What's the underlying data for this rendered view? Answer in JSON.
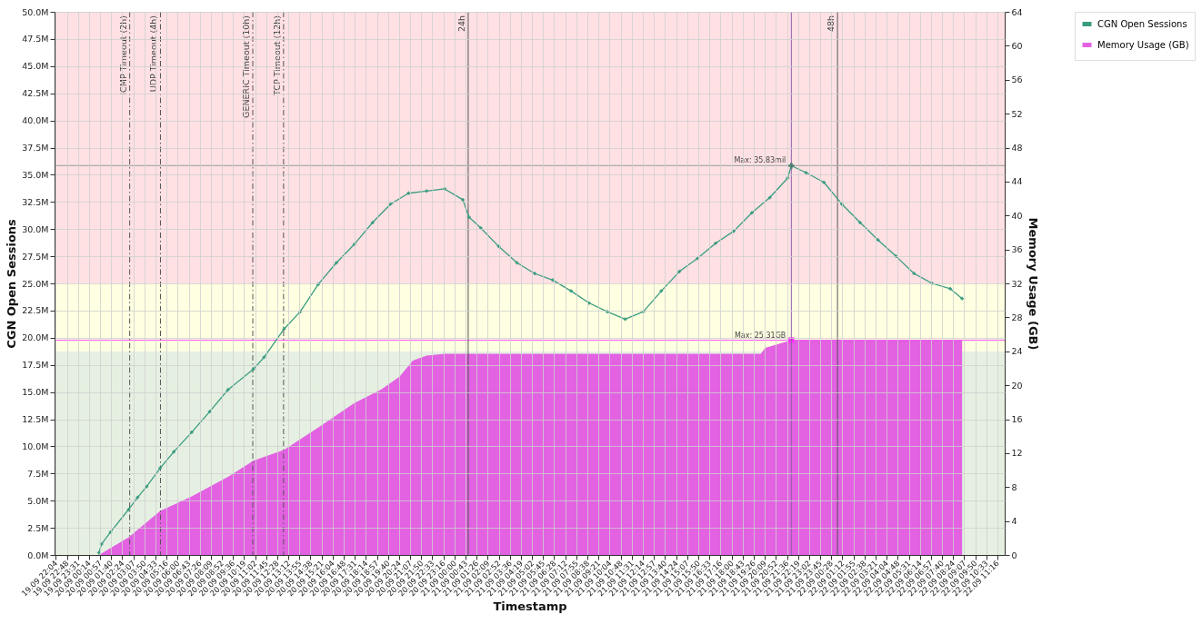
{
  "chart_data": {
    "type": "line",
    "xlabel": "Timestamp",
    "ylabel": "CGN Open Sessions",
    "y2label": "Memory Usage (GB)",
    "xlim": [
      "--09-19T22:00",
      "--09-22T11:45"
    ],
    "xticks": [
      {
        "value": "--09-19T22:04",
        "label": "19.09 22:04"
      },
      {
        "value": "--09-19T22:48",
        "label": "19.09 22:48"
      },
      {
        "value": "--09-19T23:31",
        "label": "19.09 23:31"
      },
      {
        "value": "--09-20T00:14",
        "label": "20.09 00:14"
      },
      {
        "value": "--09-20T00:57",
        "label": "20.09 00:57"
      },
      {
        "value": "--09-20T01:40",
        "label": "20.09 01:40"
      },
      {
        "value": "--09-20T02:24",
        "label": "20.09 02:24"
      },
      {
        "value": "--09-20T03:07",
        "label": "20.09 03:07"
      },
      {
        "value": "--09-20T03:50",
        "label": "20.09 03:50"
      },
      {
        "value": "--09-20T04:33",
        "label": "20.09 04:33"
      },
      {
        "value": "--09-20T05:16",
        "label": "20.09 05:16"
      },
      {
        "value": "--09-20T06:00",
        "label": "20.09 06:00"
      },
      {
        "value": "--09-20T06:43",
        "label": "20.09 06:43"
      },
      {
        "value": "--09-20T07:26",
        "label": "20.09 07:26"
      },
      {
        "value": "--09-20T08:09",
        "label": "20.09 08:09"
      },
      {
        "value": "--09-20T08:52",
        "label": "20.09 08:52"
      },
      {
        "value": "--09-20T09:36",
        "label": "20.09 09:36"
      },
      {
        "value": "--09-20T10:19",
        "label": "20.09 10:19"
      },
      {
        "value": "--09-20T11:02",
        "label": "20.09 11:02"
      },
      {
        "value": "--09-20T11:45",
        "label": "20.09 11:45"
      },
      {
        "value": "--09-20T12:28",
        "label": "20.09 12:28"
      },
      {
        "value": "--09-20T13:12",
        "label": "20.09 13:12"
      },
      {
        "value": "--09-20T13:55",
        "label": "20.09 13:55"
      },
      {
        "value": "--09-20T14:38",
        "label": "20.09 14:38"
      },
      {
        "value": "--09-20T15:21",
        "label": "20.09 15:21"
      },
      {
        "value": "--09-20T16:04",
        "label": "20.09 16:04"
      },
      {
        "value": "--09-20T16:48",
        "label": "20.09 16:48"
      },
      {
        "value": "--09-20T17:31",
        "label": "20.09 17:31"
      },
      {
        "value": "--09-20T18:14",
        "label": "20.09 18:14"
      },
      {
        "value": "--09-20T18:57",
        "label": "20.09 18:57"
      },
      {
        "value": "--09-20T19:40",
        "label": "20.09 19:40"
      },
      {
        "value": "--09-20T20:24",
        "label": "20.09 20:24"
      },
      {
        "value": "--09-20T21:07",
        "label": "20.09 21:07"
      },
      {
        "value": "--09-20T21:50",
        "label": "20.09 21:50"
      },
      {
        "value": "--09-20T22:33",
        "label": "20.09 22:33"
      },
      {
        "value": "--09-20T23:16",
        "label": "20.09 23:16"
      },
      {
        "value": "--09-21T00:00",
        "label": "21.09 00:00"
      },
      {
        "value": "--09-21T00:43",
        "label": "21.09 00:43"
      },
      {
        "value": "--09-21T01:26",
        "label": "21.09 01:26"
      },
      {
        "value": "--09-21T02:09",
        "label": "21.09 02:09"
      },
      {
        "value": "--09-21T02:52",
        "label": "21.09 02:52"
      },
      {
        "value": "--09-21T03:36",
        "label": "21.09 03:36"
      },
      {
        "value": "--09-21T04:19",
        "label": "21.09 04:19"
      },
      {
        "value": "--09-21T05:02",
        "label": "21.09 05:02"
      },
      {
        "value": "--09-21T05:45",
        "label": "21.09 05:45"
      },
      {
        "value": "--09-21T06:28",
        "label": "21.09 06:28"
      },
      {
        "value": "--09-21T07:12",
        "label": "21.09 07:12"
      },
      {
        "value": "--09-21T07:55",
        "label": "21.09 07:55"
      },
      {
        "value": "--09-21T08:38",
        "label": "21.09 08:38"
      },
      {
        "value": "--09-21T09:21",
        "label": "21.09 09:21"
      },
      {
        "value": "--09-21T10:04",
        "label": "21.09 10:04"
      },
      {
        "value": "--09-21T10:48",
        "label": "21.09 10:48"
      },
      {
        "value": "--09-21T11:31",
        "label": "21.09 11:31"
      },
      {
        "value": "--09-21T12:14",
        "label": "21.09 12:14"
      },
      {
        "value": "--09-21T12:57",
        "label": "21.09 12:57"
      },
      {
        "value": "--09-21T13:40",
        "label": "21.09 13:40"
      },
      {
        "value": "--09-21T14:24",
        "label": "21.09 14:24"
      },
      {
        "value": "--09-21T15:07",
        "label": "21.09 15:07"
      },
      {
        "value": "--09-21T15:50",
        "label": "21.09 15:50"
      },
      {
        "value": "--09-21T16:33",
        "label": "21.09 16:33"
      },
      {
        "value": "--09-21T17:16",
        "label": "21.09 17:16"
      },
      {
        "value": "--09-21T18:00",
        "label": "21.09 18:00"
      },
      {
        "value": "--09-21T18:43",
        "label": "21.09 18:43"
      },
      {
        "value": "--09-21T19:26",
        "label": "21.09 19:26"
      },
      {
        "value": "--09-21T20:09",
        "label": "21.09 20:09"
      },
      {
        "value": "--09-21T20:52",
        "label": "21.09 20:52"
      },
      {
        "value": "--09-21T21:36",
        "label": "21.09 21:36"
      },
      {
        "value": "--09-21T22:19",
        "label": "21.09 22:19"
      },
      {
        "value": "--09-21T23:02",
        "label": "21.09 23:02"
      },
      {
        "value": "--09-21T23:45",
        "label": "21.09 23:45"
      },
      {
        "value": "--09-22T00:28",
        "label": "22.09 00:28"
      },
      {
        "value": "--09-22T01:12",
        "label": "22.09 01:12"
      },
      {
        "value": "--09-22T01:55",
        "label": "22.09 01:55"
      },
      {
        "value": "--09-22T02:38",
        "label": "22.09 02:38"
      },
      {
        "value": "--09-22T03:21",
        "label": "22.09 03:21"
      },
      {
        "value": "--09-22T04:04",
        "label": "22.09 04:04"
      },
      {
        "value": "--09-22T04:48",
        "label": "22.09 04:48"
      },
      {
        "value": "--09-22T05:31",
        "label": "22.09 05:31"
      },
      {
        "value": "--09-22T06:14",
        "label": "22.09 06:14"
      },
      {
        "value": "--09-22T06:57",
        "label": "22.09 06:57"
      },
      {
        "value": "--09-22T07:40",
        "label": "22.09 07:40"
      },
      {
        "value": "--09-22T08:24",
        "label": "22.09 08:24"
      },
      {
        "value": "--09-22T09:07",
        "label": "22.09 09:07"
      },
      {
        "value": "--09-22T09:50",
        "label": "22.09 09:50"
      },
      {
        "value": "--09-22T10:33",
        "label": "22.09 10:33"
      },
      {
        "value": "--09-22T11:16",
        "label": "22.09 11:16"
      }
    ],
    "ylim": [
      0,
      50
    ],
    "yticks": [
      {
        "value": 0,
        "label": "0.0M"
      },
      {
        "value": 2.5,
        "label": "2.5M"
      },
      {
        "value": 5,
        "label": "5.0M"
      },
      {
        "value": 7.5,
        "label": "7.5M"
      },
      {
        "value": 10,
        "label": "10.0M"
      },
      {
        "value": 12.5,
        "label": "12.5M"
      },
      {
        "value": 15,
        "label": "15.0M"
      },
      {
        "value": 17.5,
        "label": "17.5M"
      },
      {
        "value": 20,
        "label": "20.0M"
      },
      {
        "value": 22.5,
        "label": "22.5M"
      },
      {
        "value": 25,
        "label": "25.0M"
      },
      {
        "value": 27.5,
        "label": "27.5M"
      },
      {
        "value": 30,
        "label": "30.0M"
      },
      {
        "value": 32.5,
        "label": "32.5M"
      },
      {
        "value": 35,
        "label": "35.0M"
      },
      {
        "value": 37.5,
        "label": "37.5M"
      },
      {
        "value": 40,
        "label": "40.0M"
      },
      {
        "value": 42.5,
        "label": "42.5M"
      },
      {
        "value": 45,
        "label": "45.0M"
      },
      {
        "value": 47.5,
        "label": "47.5M"
      },
      {
        "value": 50,
        "label": "50.0M"
      }
    ],
    "y2lim": [
      0,
      64
    ],
    "y2ticks": [
      0,
      4,
      8,
      12,
      16,
      20,
      24,
      28,
      32,
      36,
      40,
      44,
      48,
      52,
      56,
      60,
      64
    ],
    "grid": true,
    "legend": "top right",
    "marker": "cross",
    "line_style": "solid",
    "series": [
      {
        "name": "CGN Open Sessions",
        "color": "#3a9c80",
        "x": [
          "--09-20T00:53",
          "--09-20T01:03",
          "--09-20T01:38",
          "--09-20T02:49",
          "--09-20T03:24",
          "--09-20T03:59",
          "--09-20T04:52",
          "--09-20T05:45",
          "--09-20T06:55",
          "--09-20T08:05",
          "--09-20T09:16",
          "--09-20T10:55",
          "--09-20T11:37",
          "--09-20T12:55",
          "--09-20T13:58",
          "--09-20T15:08",
          "--09-20T16:19",
          "--09-20T17:29",
          "--09-20T18:40",
          "--09-20T19:50",
          "--09-20T21:00",
          "--09-20T22:11",
          "--09-20T23:21",
          "--09-21T00:32",
          "--09-21T00:56",
          "--09-21T01:42",
          "--09-21T02:52",
          "--09-21T04:03",
          "--09-21T05:13",
          "--09-21T06:23",
          "--09-21T07:34",
          "--09-21T08:44",
          "--09-21T09:55",
          "--09-21T11:05",
          "--09-21T12:16",
          "--09-21T13:26",
          "--09-21T14:37",
          "--09-21T15:47",
          "--09-21T16:58",
          "--09-21T18:08",
          "--09-21T19:19",
          "--09-21T20:29",
          "--09-21T21:39",
          "--09-21T21:53",
          "--09-21T22:50",
          "--09-22T00:00",
          "--09-22T01:10",
          "--09-22T02:21",
          "--09-22T03:31",
          "--09-22T04:41",
          "--09-22T05:52",
          "--09-22T07:02",
          "--09-22T08:13",
          "--09-22T08:59"
        ],
        "values": [
          0.2,
          1.0,
          2.1,
          4.2,
          5.3,
          6.3,
          8.0,
          9.5,
          11.3,
          13.2,
          15.2,
          17.1,
          18.2,
          20.8,
          22.4,
          24.9,
          26.9,
          28.6,
          30.6,
          32.3,
          33.3,
          33.5,
          33.7,
          32.7,
          31.1,
          30.1,
          28.4,
          26.9,
          25.9,
          25.3,
          24.3,
          23.2,
          22.4,
          21.7,
          22.4,
          24.3,
          26.1,
          27.3,
          28.7,
          29.8,
          31.5,
          32.9,
          34.7,
          35.83,
          35.2,
          34.3,
          32.3,
          30.6,
          29.0,
          27.5,
          25.9,
          25.0,
          24.5,
          23.6
        ]
      },
      {
        "name": "Memory Usage (GB)",
        "type": "area",
        "axis": "y2",
        "marker": "none",
        "color": "#e262e2",
        "x": [
          "--09-20T00:53",
          "--09-20T02:49",
          "--09-20T04:52",
          "--09-20T06:55",
          "--09-20T09:16",
          "--09-20T10:55",
          "--09-20T12:55",
          "--09-20T15:08",
          "--09-20T17:29",
          "--09-20T19:14",
          "--09-20T20:25",
          "--09-20T21:17",
          "--09-20T22:11",
          "--09-20T23:21",
          "--09-21T19:54",
          "--09-21T20:11",
          "--09-21T21:53",
          "--09-22T08:59"
        ],
        "values": [
          0,
          2.1,
          5.2,
          6.9,
          9.2,
          11.1,
          12.4,
          15.0,
          17.9,
          19.5,
          21.0,
          22.9,
          23.5,
          23.7,
          23.7,
          24.4,
          25.31,
          25.31
        ]
      },
      {
        "type": "scatter",
        "color": "#4a7f70",
        "marker": "cross",
        "x": [
          "--09-21T21:53"
        ],
        "values": [
          35.83
        ]
      },
      {
        "type": "scatter",
        "axis": "y2",
        "color": "#ff30ff",
        "marker": "square",
        "x": [
          "--09-21T21:53"
        ],
        "values": [
          25.31
        ]
      }
    ],
    "bands": [
      {
        "axis": "y2",
        "from": 0,
        "to": 24,
        "color": "#e6f0e2"
      },
      {
        "axis": "y2",
        "from": 24,
        "to": 32,
        "color": "#ffffe1"
      },
      {
        "axis": "y2",
        "from": 32,
        "to": 64,
        "color": "#ffe1e4"
      }
    ],
    "ref_lines": [
      {
        "axis": "x",
        "value": "--09-20T02:53",
        "label": "ICMP Timeout (2h)",
        "color": "#555555",
        "line_style": "dashed"
      },
      {
        "axis": "x",
        "value": "--09-20T04:53",
        "label": "UDP Timeout (4h)",
        "color": "#555555",
        "line_style": "dashed"
      },
      {
        "axis": "x",
        "value": "--09-20T10:53",
        "label": "GENERIC Timeout (10h)",
        "color": "#555555",
        "line_style": "dashed"
      },
      {
        "axis": "x",
        "value": "--09-20T12:53",
        "label": "TCP Timeout (12h)",
        "color": "#555555",
        "line_style": "dashed"
      },
      {
        "axis": "x",
        "value": "--09-21T00:53",
        "label": "24h",
        "color": "#555555",
        "line_style": "solid"
      },
      {
        "axis": "x",
        "value": "--09-22T00:53",
        "label": "48h",
        "color": "#555555",
        "line_style": "solid"
      },
      {
        "axis": "x",
        "value": "--09-21T21:53",
        "color": "#9060b0",
        "line_style": "solid"
      },
      {
        "axis": "y",
        "value": 35.83,
        "label": "Max: 35.83mil",
        "color": "#aaaaaa",
        "line_style": "solid"
      },
      {
        "axis": "y2",
        "value": 25.31,
        "label": "Max: 25.31GB",
        "color": "#ff55ff",
        "line_style": "solid"
      }
    ]
  }
}
